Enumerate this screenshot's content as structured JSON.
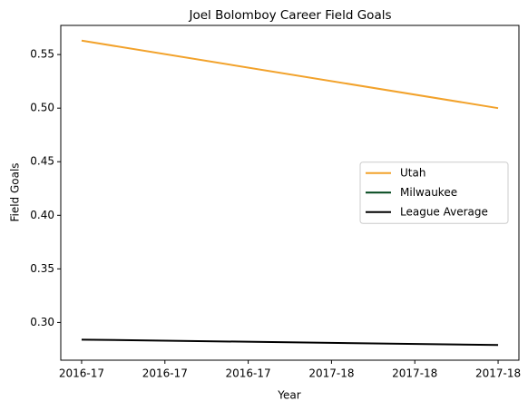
{
  "chart_data": {
    "type": "line",
    "title": "Joel Bolomboy Career Field Goals",
    "x_label": "Year",
    "y_label": "Field Goals",
    "x": [
      0,
      1
    ],
    "series": [
      {
        "name": "Utah",
        "color": "#f2a22b",
        "values": [
          0.563,
          0.5
        ]
      },
      {
        "name": "Milwaukee",
        "color": "#00471b",
        "values": [
          null,
          null
        ]
      },
      {
        "name": "League Average",
        "color": "#000000",
        "values": [
          0.284,
          0.279
        ]
      }
    ],
    "xlim": [
      -0.05,
      1.05
    ],
    "xticks": [
      {
        "value": 0,
        "label": "2016-17"
      },
      {
        "value": 0.2,
        "label": "2016-17"
      },
      {
        "value": 0.4,
        "label": "2016-17"
      },
      {
        "value": 0.6,
        "label": "2017-18"
      },
      {
        "value": 0.8,
        "label": "2017-18"
      },
      {
        "value": 1,
        "label": "2017-18"
      }
    ],
    "ylim": [
      0.2648,
      0.5772
    ],
    "yticks": [
      {
        "value": 0.3,
        "label": "0.30"
      },
      0.35,
      {
        "value": 0.4,
        "label": "0.40"
      },
      0.45,
      {
        "value": 0.5,
        "label": "0.50"
      },
      0.55
    ],
    "legend": "right"
  }
}
